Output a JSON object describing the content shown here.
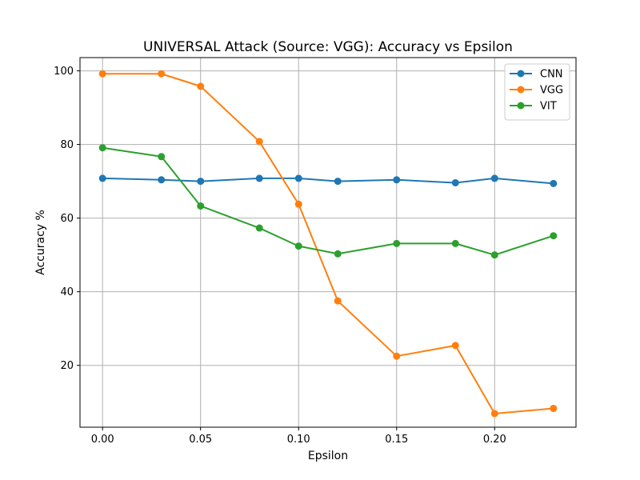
{
  "chart_data": {
    "type": "line",
    "title": "UNIVERSAL Attack (Source: VGG): Accuracy vs Epsilon",
    "xlabel": "Epsilon",
    "ylabel": "Accuracy %",
    "x": [
      0.0,
      0.03,
      0.05,
      0.08,
      0.1,
      0.12,
      0.15,
      0.18,
      0.2,
      0.23
    ],
    "xlim": [
      -0.0115,
      0.2415
    ],
    "ylim": [
      3.2,
      103.6
    ],
    "xticks": [
      0.0,
      0.05,
      0.1,
      0.15,
      0.2
    ],
    "xtick_labels": [
      "0.00",
      "0.05",
      "0.10",
      "0.15",
      "0.20"
    ],
    "yticks": [
      20,
      40,
      60,
      80,
      100
    ],
    "ytick_labels": [
      "20",
      "40",
      "60",
      "80",
      "100"
    ],
    "grid": true,
    "legend_position": "top-right",
    "series": [
      {
        "name": "CNN",
        "color": "#1f77b4",
        "values": [
          70.8,
          70.4,
          70.0,
          70.8,
          70.8,
          70.0,
          70.4,
          69.6,
          70.8,
          69.4
        ]
      },
      {
        "name": "VGG",
        "color": "#ff7f0e",
        "values": [
          99.2,
          99.2,
          95.8,
          80.8,
          63.8,
          37.5,
          22.5,
          25.4,
          6.9,
          8.3
        ]
      },
      {
        "name": "VIT",
        "color": "#2ca02c",
        "values": [
          79.1,
          76.7,
          63.3,
          57.3,
          52.4,
          50.3,
          53.1,
          53.1,
          50.0,
          55.2
        ]
      }
    ]
  }
}
